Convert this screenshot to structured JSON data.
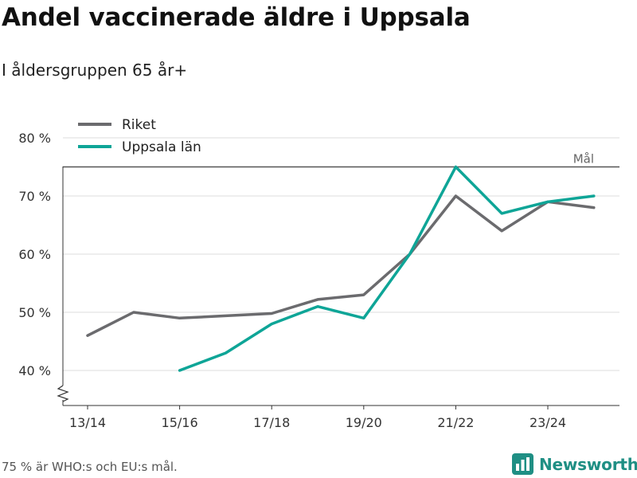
{
  "title": "Andel vaccinerade äldre i Uppsala",
  "subtitle": "I åldersgruppen 65 år+",
  "footnote": "75 % är WHO:s och EU:s mål.",
  "brand": {
    "name": "Newsworthy",
    "icon": "bar-chart-logo-icon"
  },
  "colors": {
    "riket": "#6b6b6e",
    "uppsala": "#0ea597",
    "target": "#555555",
    "grid": "#dcdcdc"
  },
  "chart_data": {
    "type": "line",
    "x": [
      "13/14",
      "14/15",
      "15/16",
      "16/17",
      "17/18",
      "18/19",
      "19/20",
      "20/21",
      "21/22",
      "22/23",
      "23/24",
      "24/25"
    ],
    "x_tick_labels": [
      "13/14",
      "15/16",
      "17/18",
      "19/20",
      "21/22",
      "23/24"
    ],
    "y_ticks": [
      40,
      50,
      60,
      70,
      80
    ],
    "y_tick_format": "{} %",
    "ylim": [
      35,
      82
    ],
    "axis_break": true,
    "grid": true,
    "legend_position": "top-left",
    "series": [
      {
        "name": "Riket",
        "color": "#6b6b6e",
        "values": [
          46,
          50,
          49,
          49.4,
          49.8,
          52.2,
          53,
          60,
          70,
          64,
          69,
          68
        ]
      },
      {
        "name": "Uppsala län",
        "color": "#0ea597",
        "values": [
          null,
          null,
          40,
          43,
          48,
          51,
          49,
          60,
          75,
          67,
          69,
          70
        ]
      }
    ],
    "target_line": {
      "value": 75,
      "label": "Mål"
    }
  }
}
